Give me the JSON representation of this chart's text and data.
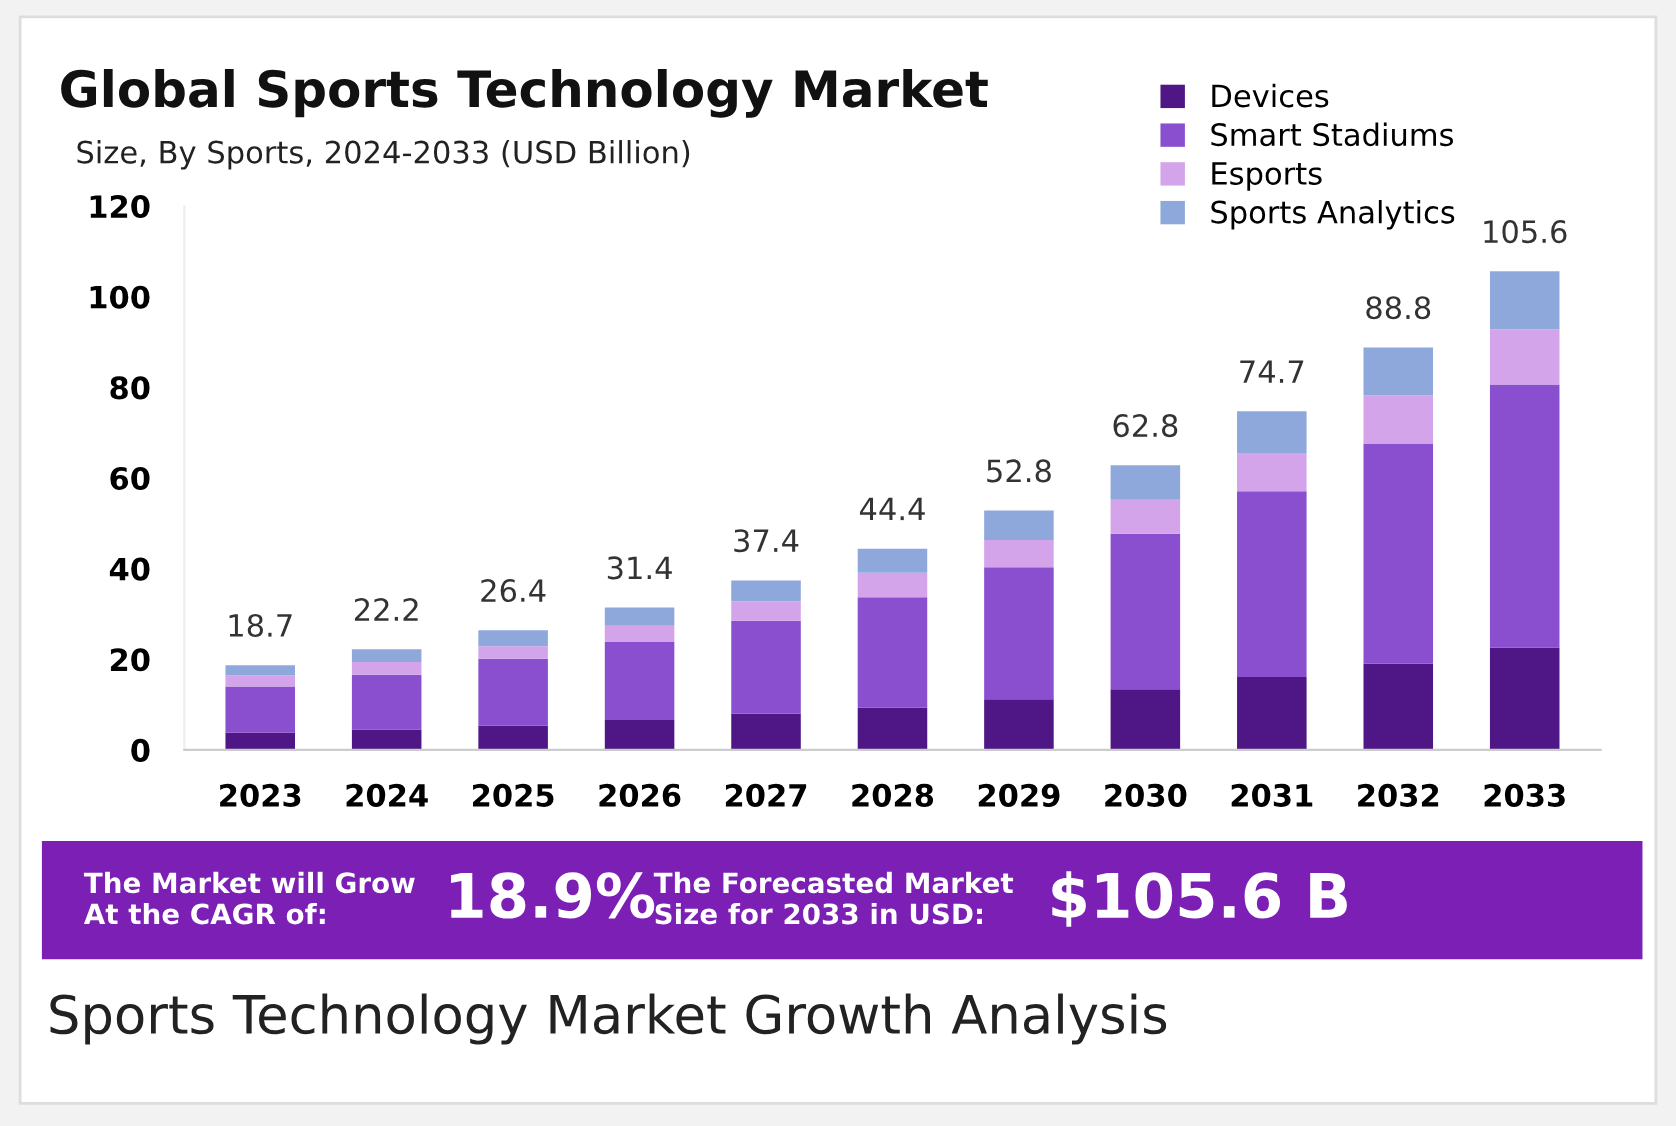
{
  "chart_data": {
    "type": "bar",
    "title": "Global Sports Technology Market",
    "subtitle": "Size, By Sports, 2024-2033 (USD Billion)",
    "categories": [
      "2023",
      "2024",
      "2025",
      "2026",
      "2027",
      "2028",
      "2029",
      "2030",
      "2031",
      "2032",
      "2033"
    ],
    "stacked": true,
    "series": [
      {
        "name": "Devices",
        "color": "#4e1785",
        "values": [
          3.8,
          4.5,
          5.4,
          6.6,
          8.0,
          9.3,
          11.2,
          13.4,
          16.1,
          19.0,
          22.6
        ]
      },
      {
        "name": "Smart Stadiums",
        "color": "#8a4fcf",
        "values": [
          10.2,
          12.1,
          14.7,
          17.2,
          20.5,
          24.4,
          29.1,
          34.3,
          41.0,
          48.6,
          58.0
        ]
      },
      {
        "name": "Esports",
        "color": "#d3a4ea",
        "values": [
          2.4,
          2.8,
          2.8,
          3.6,
          4.3,
          5.4,
          6.0,
          7.5,
          8.4,
          10.6,
          12.2
        ]
      },
      {
        "name": "Sports Analytics",
        "color": "#8fa8dc",
        "values": [
          2.3,
          2.8,
          3.5,
          4.0,
          4.6,
          5.3,
          6.5,
          7.6,
          9.2,
          10.6,
          12.8
        ]
      }
    ],
    "totals": [
      "18.7",
      "22.2",
      "26.4",
      "31.4",
      "37.4",
      "44.4",
      "52.8",
      "62.8",
      "74.7",
      "88.8",
      "105.6"
    ],
    "ylim": [
      0,
      120
    ],
    "yticks": [
      0,
      20,
      40,
      60,
      80,
      100,
      120
    ],
    "grid": false,
    "legend": "top right",
    "annotations": [
      "The Market will Grow\nAt the CAGR of:",
      "18.9%",
      "The Forecasted Market\nSize for 2033 in USD:",
      "$105.6 B",
      "Sports Technology Market Growth Analysis"
    ]
  }
}
